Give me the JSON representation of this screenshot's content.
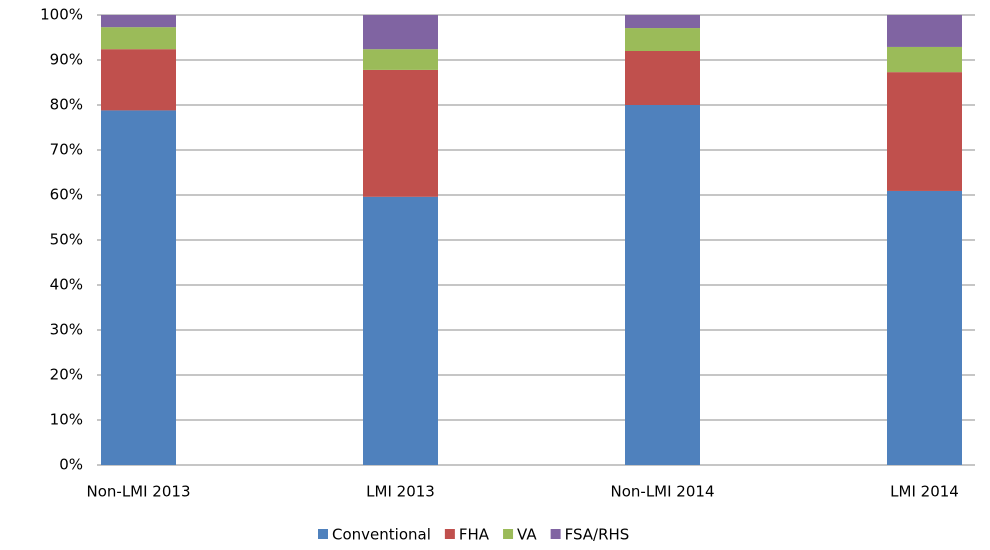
{
  "chart_data": {
    "type": "stacked-bar",
    "categories": [
      "Non-LMI 2013",
      "LMI 2013",
      "Non-LMI 2014",
      "LMI 2014"
    ],
    "series": [
      {
        "name": "Conventional",
        "color": "#4f81bd",
        "values": [
          78.8,
          59.6,
          80.0,
          60.9
        ]
      },
      {
        "name": "FHA",
        "color": "#c0504d",
        "values": [
          13.6,
          28.2,
          12.0,
          26.4
        ]
      },
      {
        "name": "VA",
        "color": "#9bbb59",
        "values": [
          4.9,
          4.6,
          5.1,
          5.6
        ]
      },
      {
        "name": "FSA/RHS",
        "color": "#8064a2",
        "values": [
          2.7,
          7.6,
          2.9,
          7.1
        ]
      }
    ],
    "ylim": [
      0,
      100
    ],
    "yticks": [
      {
        "value": 0,
        "label": "0%"
      },
      {
        "value": 10,
        "label": "10%"
      },
      {
        "value": 20,
        "label": "20%"
      },
      {
        "value": 30,
        "label": "30%"
      },
      {
        "value": 40,
        "label": "40%"
      },
      {
        "value": 50,
        "label": "50%"
      },
      {
        "value": 60,
        "label": "60%"
      },
      {
        "value": 70,
        "label": "70%"
      },
      {
        "value": 80,
        "label": "80%"
      },
      {
        "value": 90,
        "label": "90%"
      },
      {
        "value": 100,
        "label": "100%"
      }
    ],
    "grid": true,
    "legend": "bottom"
  }
}
